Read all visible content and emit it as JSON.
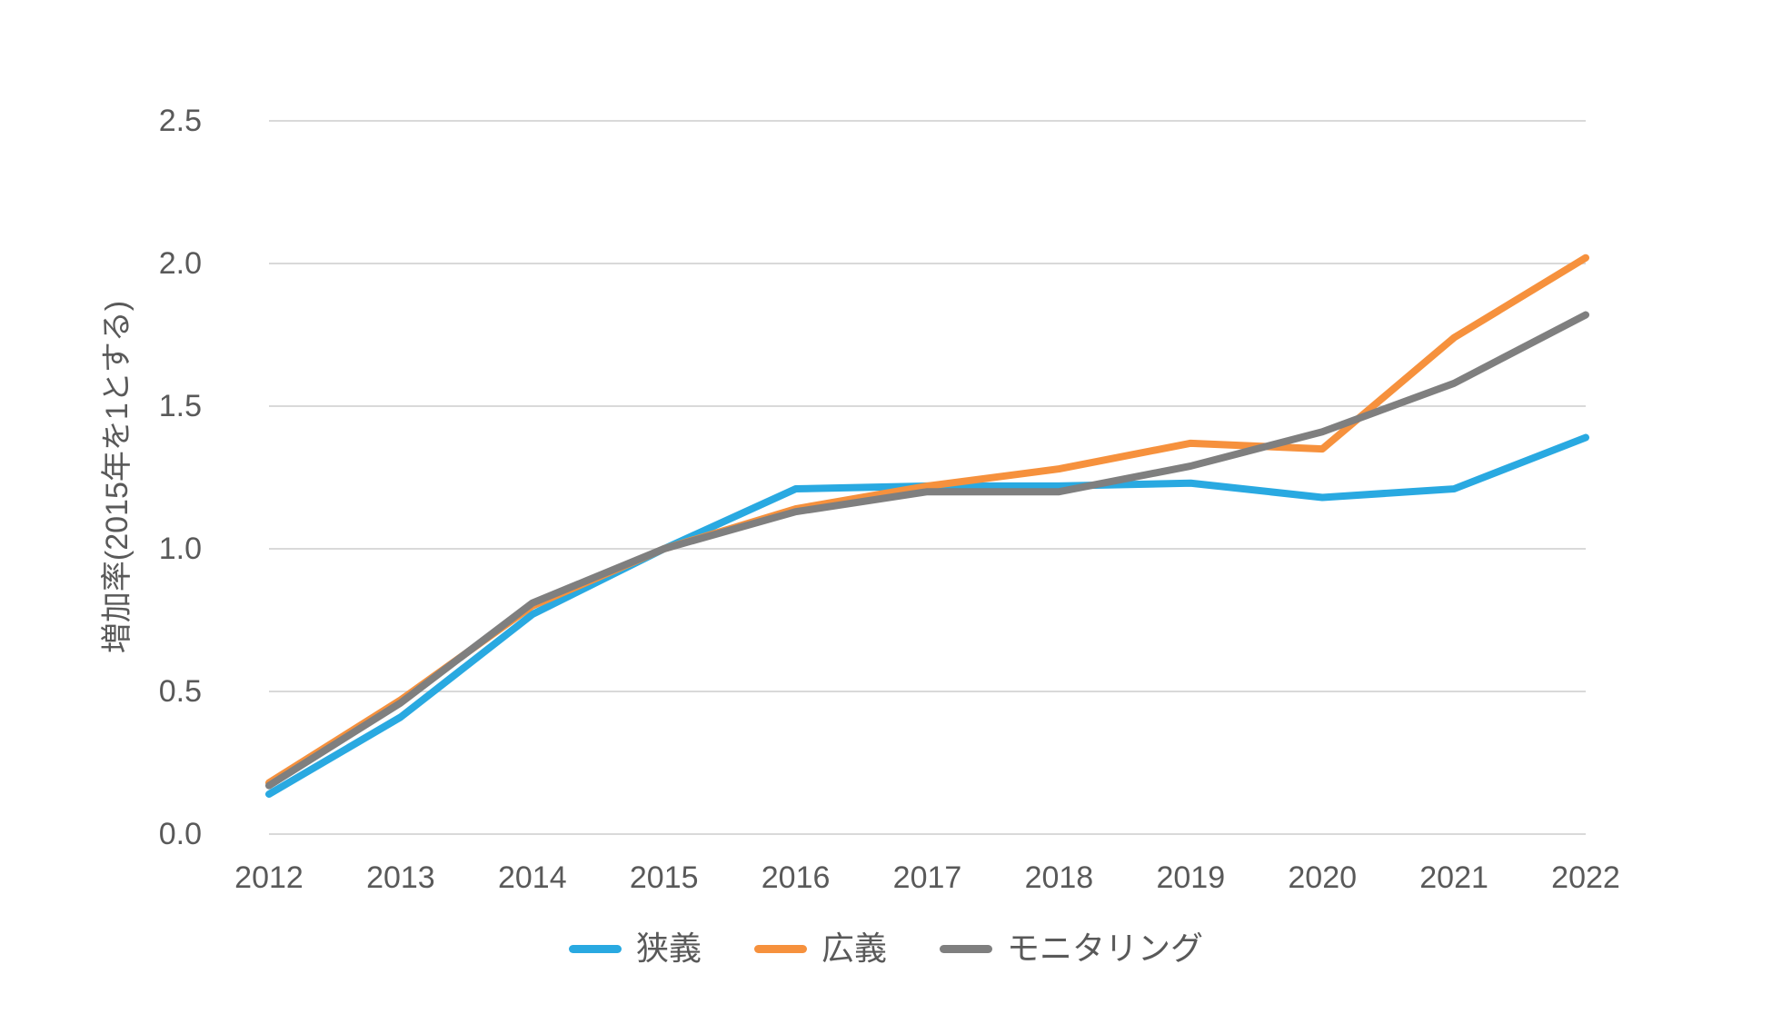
{
  "chart_data": {
    "type": "line",
    "title": "",
    "x": [
      "2012",
      "2013",
      "2014",
      "2015",
      "2016",
      "2017",
      "2018",
      "2019",
      "2020",
      "2021",
      "2022"
    ],
    "xlabel": "",
    "ylabel": "増加率(2015年を1とする)",
    "ylim": [
      0.0,
      2.5
    ],
    "yticks": [
      0.0,
      0.5,
      1.0,
      1.5,
      2.0,
      2.5
    ],
    "ytick_labels": [
      "0.0",
      "0.5",
      "1.0",
      "1.5",
      "2.0",
      "2.5"
    ],
    "grid": true,
    "legend_position": "bottom",
    "series": [
      {
        "name": "狭義",
        "color": "#29A9E1",
        "values": [
          0.14,
          0.41,
          0.77,
          1.0,
          1.21,
          1.22,
          1.22,
          1.23,
          1.18,
          1.21,
          1.39
        ]
      },
      {
        "name": "広義",
        "color": "#F6913D",
        "values": [
          0.18,
          0.47,
          0.8,
          1.0,
          1.14,
          1.22,
          1.28,
          1.37,
          1.35,
          1.74,
          2.02
        ]
      },
      {
        "name": "モニタリング",
        "color": "#7F7F7F",
        "values": [
          0.17,
          0.46,
          0.81,
          1.0,
          1.13,
          1.2,
          1.2,
          1.29,
          1.41,
          1.58,
          1.82
        ]
      }
    ],
    "colors": {
      "text": "#595959",
      "gridline": "#D9D9D9",
      "background": "#FFFFFF"
    }
  }
}
